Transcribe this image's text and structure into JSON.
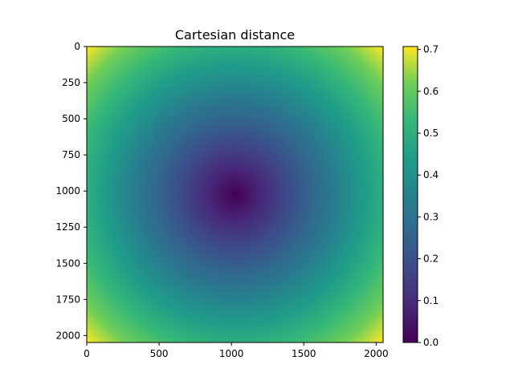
{
  "chart_data": {
    "type": "heatmap",
    "title": "Cartesian distance",
    "xlabel": "",
    "ylabel": "",
    "image_size": [
      2048,
      2048
    ],
    "center": [
      1024,
      1024
    ],
    "value_formula": "sqrt(((x-1024)/2048)^2 + ((y-1024)/2048)^2)",
    "value_range": [
      0.0,
      0.707
    ],
    "xlim": [
      0,
      2048
    ],
    "ylim": [
      2048,
      0
    ],
    "x_ticks": [
      0,
      500,
      1000,
      1500,
      2000
    ],
    "y_ticks": [
      0,
      250,
      500,
      750,
      1000,
      1250,
      1500,
      1750,
      2000
    ],
    "colormap": "viridis",
    "colorbar": {
      "range": [
        0.0,
        0.707
      ],
      "ticks": [
        0.0,
        0.1,
        0.2,
        0.3,
        0.4,
        0.5,
        0.6,
        0.7
      ],
      "tick_labels": [
        "0.0",
        "0.1",
        "0.2",
        "0.3",
        "0.4",
        "0.5",
        "0.6",
        "0.7"
      ]
    },
    "grid": false
  }
}
